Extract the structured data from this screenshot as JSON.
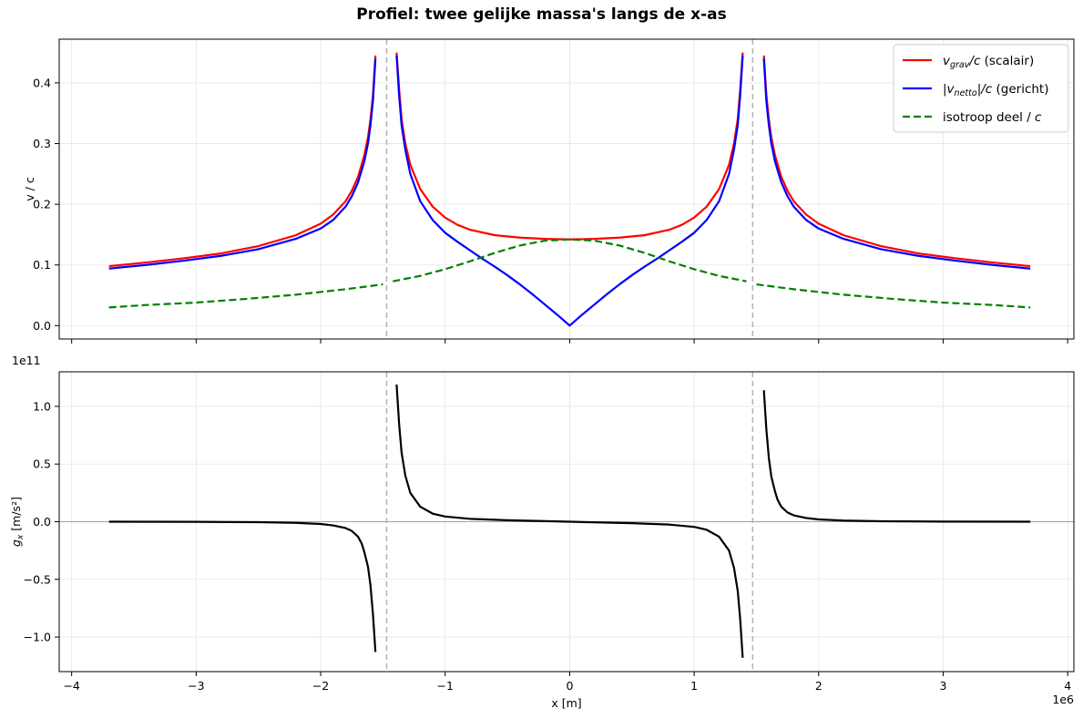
{
  "figure": {
    "title": "Profiel: twee gelijke massa's langs de x-as"
  },
  "chart_data": [
    {
      "type": "line",
      "title": "",
      "xlabel": "",
      "ylabel": "v / c",
      "xlim": [
        -4100000.0,
        4050000.0
      ],
      "ylim": [
        -0.022,
        0.472
      ],
      "xticks": [
        -4000000.0,
        -3000000.0,
        -2000000.0,
        -1000000.0,
        0,
        1000000.0,
        2000000.0,
        3000000.0,
        4000000.0
      ],
      "yticks": [
        0.0,
        0.1,
        0.2,
        0.3,
        0.4
      ],
      "ytick_labels": [
        "0.0",
        "0.1",
        "0.2",
        "0.3",
        "0.4"
      ],
      "grid": true,
      "legend_position": "top-right",
      "legend": [
        {
          "var": "v",
          "sub": "grav",
          "pre": "",
          "post": "/c",
          "suffix": " (scalair)",
          "color": "#ff0000",
          "dash": "solid"
        },
        {
          "var": "|v",
          "sub": "netto",
          "pre": "",
          "post": "|/c",
          "suffix": " (gericht)",
          "color": "#0000ff",
          "dash": "solid"
        },
        {
          "text": "isotroop deel / ",
          "italic": "c",
          "color": "#008000",
          "dash": "dashed"
        }
      ],
      "vlines": [
        -1470000.0,
        1470000.0
      ],
      "series": [
        {
          "name": "v_grav/c (scalair)",
          "color": "#ff0000",
          "dash": "solid",
          "points": [
            [
              -3700000.0,
              0.098
            ],
            [
              -3400000.0,
              0.104
            ],
            [
              -3100000.0,
              0.111
            ],
            [
              -2800000.0,
              0.119
            ],
            [
              -2500000.0,
              0.131
            ],
            [
              -2200000.0,
              0.149
            ],
            [
              -2000000.0,
              0.168
            ],
            [
              -1900000.0,
              0.183
            ],
            [
              -1800000.0,
              0.205
            ],
            [
              -1750000.0,
              0.222
            ],
            [
              -1700000.0,
              0.245
            ],
            [
              -1650000.0,
              0.28
            ],
            [
              -1620000.0,
              0.31
            ],
            [
              -1600000.0,
              0.34
            ],
            [
              -1580000.0,
              0.38
            ],
            [
              -1560000.0,
              0.445
            ],
            null,
            [
              -1390000.0,
              0.45
            ],
            [
              -1370000.0,
              0.39
            ],
            [
              -1350000.0,
              0.34
            ],
            [
              -1320000.0,
              0.3
            ],
            [
              -1280000.0,
              0.265
            ],
            [
              -1200000.0,
              0.225
            ],
            [
              -1100000.0,
              0.196
            ],
            [
              -1000000.0,
              0.178
            ],
            [
              -900000.0,
              0.166
            ],
            [
              -800000.0,
              0.158
            ],
            [
              -600000.0,
              0.149
            ],
            [
              -400000.0,
              0.145
            ],
            [
              -200000.0,
              0.143
            ],
            [
              0,
              0.142
            ],
            [
              200000.0,
              0.143
            ],
            [
              400000.0,
              0.145
            ],
            [
              600000.0,
              0.149
            ],
            [
              800000.0,
              0.158
            ],
            [
              900000.0,
              0.166
            ],
            [
              1000000.0,
              0.178
            ],
            [
              1100000.0,
              0.196
            ],
            [
              1200000.0,
              0.225
            ],
            [
              1280000.0,
              0.265
            ],
            [
              1320000.0,
              0.3
            ],
            [
              1350000.0,
              0.34
            ],
            [
              1370000.0,
              0.39
            ],
            [
              1390000.0,
              0.45
            ],
            null,
            [
              1560000.0,
              0.445
            ],
            [
              1580000.0,
              0.38
            ],
            [
              1600000.0,
              0.34
            ],
            [
              1620000.0,
              0.31
            ],
            [
              1650000.0,
              0.28
            ],
            [
              1700000.0,
              0.245
            ],
            [
              1750000.0,
              0.222
            ],
            [
              1800000.0,
              0.205
            ],
            [
              1900000.0,
              0.183
            ],
            [
              2000000.0,
              0.168
            ],
            [
              2200000.0,
              0.149
            ],
            [
              2500000.0,
              0.131
            ],
            [
              2800000.0,
              0.119
            ],
            [
              3100000.0,
              0.111
            ],
            [
              3400000.0,
              0.104
            ],
            [
              3700000.0,
              0.098
            ]
          ]
        },
        {
          "name": "|v_netto|/c (gericht)",
          "color": "#0000ff",
          "dash": "solid",
          "points": [
            [
              -3700000.0,
              0.094
            ],
            [
              -3400000.0,
              0.1
            ],
            [
              -3100000.0,
              0.107
            ],
            [
              -2800000.0,
              0.115
            ],
            [
              -2500000.0,
              0.126
            ],
            [
              -2200000.0,
              0.143
            ],
            [
              -2000000.0,
              0.16
            ],
            [
              -1900000.0,
              0.174
            ],
            [
              -1800000.0,
              0.196
            ],
            [
              -1750000.0,
              0.213
            ],
            [
              -1700000.0,
              0.236
            ],
            [
              -1650000.0,
              0.27
            ],
            [
              -1620000.0,
              0.3
            ],
            [
              -1600000.0,
              0.33
            ],
            [
              -1580000.0,
              0.37
            ],
            [
              -1560000.0,
              0.44
            ],
            null,
            [
              -1390000.0,
              0.445
            ],
            [
              -1370000.0,
              0.38
            ],
            [
              -1350000.0,
              0.33
            ],
            [
              -1320000.0,
              0.29
            ],
            [
              -1280000.0,
              0.25
            ],
            [
              -1200000.0,
              0.205
            ],
            [
              -1100000.0,
              0.174
            ],
            [
              -1000000.0,
              0.153
            ],
            [
              -900000.0,
              0.138
            ],
            [
              -800000.0,
              0.124
            ],
            [
              -700000.0,
              0.11
            ],
            [
              -600000.0,
              0.097
            ],
            [
              -500000.0,
              0.083
            ],
            [
              -400000.0,
              0.068
            ],
            [
              -300000.0,
              0.052
            ],
            [
              -200000.0,
              0.035
            ],
            [
              -100000.0,
              0.018
            ],
            [
              0,
              0.0
            ],
            [
              100000.0,
              0.018
            ],
            [
              200000.0,
              0.035
            ],
            [
              300000.0,
              0.052
            ],
            [
              400000.0,
              0.068
            ],
            [
              500000.0,
              0.083
            ],
            [
              600000.0,
              0.097
            ],
            [
              700000.0,
              0.11
            ],
            [
              800000.0,
              0.124
            ],
            [
              900000.0,
              0.138
            ],
            [
              1000000.0,
              0.153
            ],
            [
              1100000.0,
              0.174
            ],
            [
              1200000.0,
              0.205
            ],
            [
              1280000.0,
              0.25
            ],
            [
              1320000.0,
              0.29
            ],
            [
              1350000.0,
              0.33
            ],
            [
              1370000.0,
              0.38
            ],
            [
              1390000.0,
              0.445
            ],
            null,
            [
              1560000.0,
              0.44
            ],
            [
              1580000.0,
              0.37
            ],
            [
              1600000.0,
              0.33
            ],
            [
              1620000.0,
              0.3
            ],
            [
              1650000.0,
              0.27
            ],
            [
              1700000.0,
              0.236
            ],
            [
              1750000.0,
              0.213
            ],
            [
              1800000.0,
              0.196
            ],
            [
              1900000.0,
              0.174
            ],
            [
              2000000.0,
              0.16
            ],
            [
              2200000.0,
              0.143
            ],
            [
              2500000.0,
              0.126
            ],
            [
              2800000.0,
              0.115
            ],
            [
              3100000.0,
              0.107
            ],
            [
              3400000.0,
              0.1
            ],
            [
              3700000.0,
              0.094
            ]
          ]
        },
        {
          "name": "isotroop deel / c",
          "color": "#008000",
          "dash": "dashed",
          "points": [
            [
              -3700000.0,
              0.03
            ],
            [
              -3400000.0,
              0.034
            ],
            [
              -3000000.0,
              0.038
            ],
            [
              -2600000.0,
              0.044
            ],
            [
              -2200000.0,
              0.051
            ],
            [
              -1800000.0,
              0.06
            ],
            [
              -1500000.0,
              0.068
            ],
            null,
            [
              -1420000.0,
              0.073
            ],
            [
              -1200000.0,
              0.082
            ],
            [
              -1000000.0,
              0.093
            ],
            [
              -800000.0,
              0.106
            ],
            [
              -600000.0,
              0.12
            ],
            [
              -400000.0,
              0.132
            ],
            [
              -200000.0,
              0.14
            ],
            [
              0,
              0.142
            ],
            [
              200000.0,
              0.14
            ],
            [
              400000.0,
              0.132
            ],
            [
              600000.0,
              0.12
            ],
            [
              800000.0,
              0.106
            ],
            [
              1000000.0,
              0.093
            ],
            [
              1200000.0,
              0.082
            ],
            [
              1420000.0,
              0.073
            ],
            null,
            [
              1500000.0,
              0.068
            ],
            [
              1800000.0,
              0.06
            ],
            [
              2200000.0,
              0.051
            ],
            [
              2600000.0,
              0.044
            ],
            [
              3000000.0,
              0.038
            ],
            [
              3400000.0,
              0.034
            ],
            [
              3700000.0,
              0.03
            ]
          ]
        }
      ]
    },
    {
      "type": "line",
      "title": "",
      "xlabel": "x [m]",
      "ylabel_var": "g",
      "ylabel_sub": "x",
      "ylabel_unit": " [m/s²]",
      "y_offset_text": "1e11",
      "x_offset_text": "1e6",
      "xlim": [
        -4100000.0,
        4050000.0
      ],
      "ylim": [
        -130000000000.0,
        130000000000.0
      ],
      "xticks": [
        -4000000.0,
        -3000000.0,
        -2000000.0,
        -1000000.0,
        0,
        1000000.0,
        2000000.0,
        3000000.0,
        4000000.0
      ],
      "xtick_labels": [
        "−4",
        "−3",
        "−2",
        "−1",
        "0",
        "1",
        "2",
        "3",
        "4"
      ],
      "yticks": [
        -100000000000.0,
        -50000000000.0,
        0,
        50000000000.0,
        100000000000.0
      ],
      "ytick_labels": [
        "−1.0",
        "−0.5",
        "0.0",
        "0.5",
        "1.0"
      ],
      "grid": true,
      "hline": 0,
      "vlines": [
        -1470000.0,
        1470000.0
      ],
      "series": [
        {
          "name": "g_x",
          "color": "#000000",
          "dash": "solid",
          "points": [
            [
              -3700000.0,
              0.0
            ],
            [
              -3000000.0,
              -100000000.0
            ],
            [
              -2500000.0,
              -400000000.0
            ],
            [
              -2200000.0,
              -1000000000.0
            ],
            [
              -2000000.0,
              -2000000000.0
            ],
            [
              -1900000.0,
              -3200000000.0
            ],
            [
              -1800000.0,
              -5500000000.0
            ],
            [
              -1750000.0,
              -8000000000.0
            ],
            [
              -1700000.0,
              -13000000000.0
            ],
            [
              -1670000.0,
              -19000000000.0
            ],
            [
              -1650000.0,
              -26000000000.0
            ],
            [
              -1620000.0,
              -39000000000.0
            ],
            [
              -1600000.0,
              -55000000000.0
            ],
            [
              -1580000.0,
              -80000000000.0
            ],
            [
              -1560000.0,
              -113000000000.0
            ],
            null,
            [
              -1390000.0,
              119000000000.0
            ],
            [
              -1370000.0,
              85000000000.0
            ],
            [
              -1350000.0,
              60000000000.0
            ],
            [
              -1320000.0,
              40000000000.0
            ],
            [
              -1280000.0,
              25000000000.0
            ],
            [
              -1200000.0,
              13000000000.0
            ],
            [
              -1100000.0,
              7000000000.0
            ],
            [
              -1000000.0,
              4500000000.0
            ],
            [
              -800000.0,
              2500000000.0
            ],
            [
              -500000.0,
              1300000000.0
            ],
            [
              0,
              0.0
            ],
            [
              500000.0,
              -1300000000.0
            ],
            [
              800000.0,
              -2500000000.0
            ],
            [
              1000000.0,
              -4500000000.0
            ],
            [
              1100000.0,
              -7000000000.0
            ],
            [
              1200000.0,
              -13000000000.0
            ],
            [
              1280000.0,
              -25000000000.0
            ],
            [
              1320000.0,
              -40000000000.0
            ],
            [
              1350000.0,
              -60000000000.0
            ],
            [
              1370000.0,
              -85000000000.0
            ],
            [
              1390000.0,
              -118000000000.0
            ],
            null,
            [
              1560000.0,
              114000000000.0
            ],
            [
              1580000.0,
              80000000000.0
            ],
            [
              1600000.0,
              55000000000.0
            ],
            [
              1620000.0,
              39000000000.0
            ],
            [
              1650000.0,
              26000000000.0
            ],
            [
              1670000.0,
              19000000000.0
            ],
            [
              1700000.0,
              13000000000.0
            ],
            [
              1750000.0,
              8000000000.0
            ],
            [
              1800000.0,
              5500000000.0
            ],
            [
              1900000.0,
              3200000000.0
            ],
            [
              2000000.0,
              2000000000.0
            ],
            [
              2200000.0,
              1000000000.0
            ],
            [
              2500000.0,
              400000000.0
            ],
            [
              3000000.0,
              100000000.0
            ],
            [
              3700000.0,
              0.0
            ]
          ]
        }
      ]
    }
  ]
}
